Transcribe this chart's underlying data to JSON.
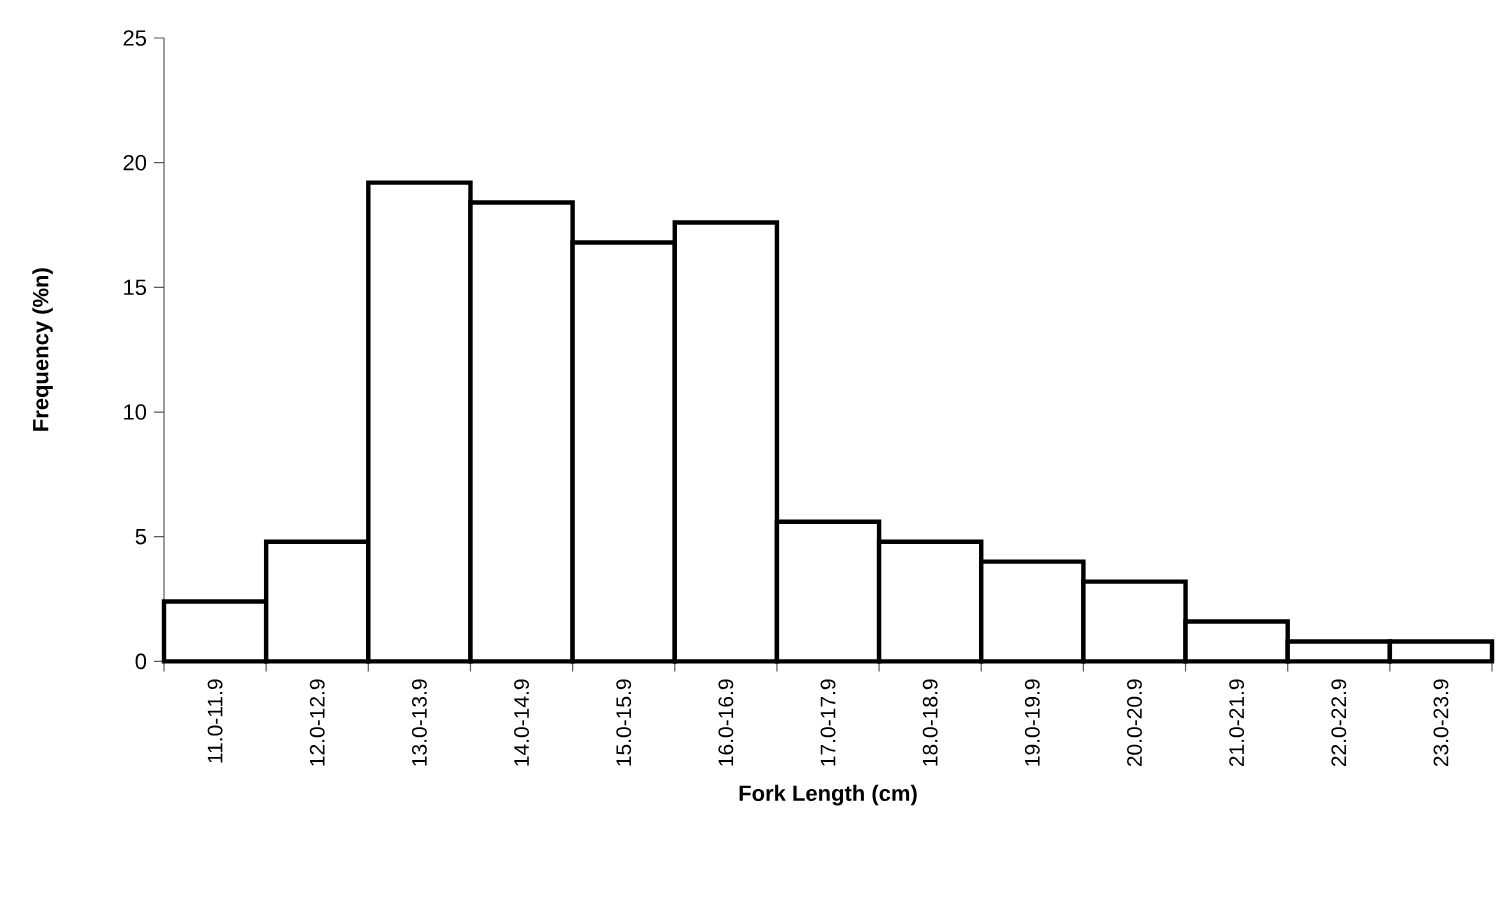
{
  "chart_data": {
    "type": "bar",
    "xlabel": "Fork Length (cm)",
    "ylabel": "Frequency (%n)",
    "categories": [
      "11.0-11.9",
      "12.0-12.9",
      "13.0-13.9",
      "14.0-14.9",
      "15.0-15.9",
      "16.0-16.9",
      "17.0-17.9",
      "18.0-18.9",
      "19.0-19.9",
      "20.0-20.9",
      "21.0-21.9",
      "22.0-22.9",
      "23.0-23.9"
    ],
    "values": [
      2.4,
      4.8,
      19.2,
      18.4,
      16.8,
      17.6,
      5.6,
      4.8,
      4.0,
      3.2,
      1.6,
      0.8,
      0.8
    ],
    "color": "#ffffff",
    "ylim": [
      0,
      25
    ],
    "yticks": [
      0,
      5,
      10,
      15,
      20,
      25
    ],
    "grid": false
  }
}
